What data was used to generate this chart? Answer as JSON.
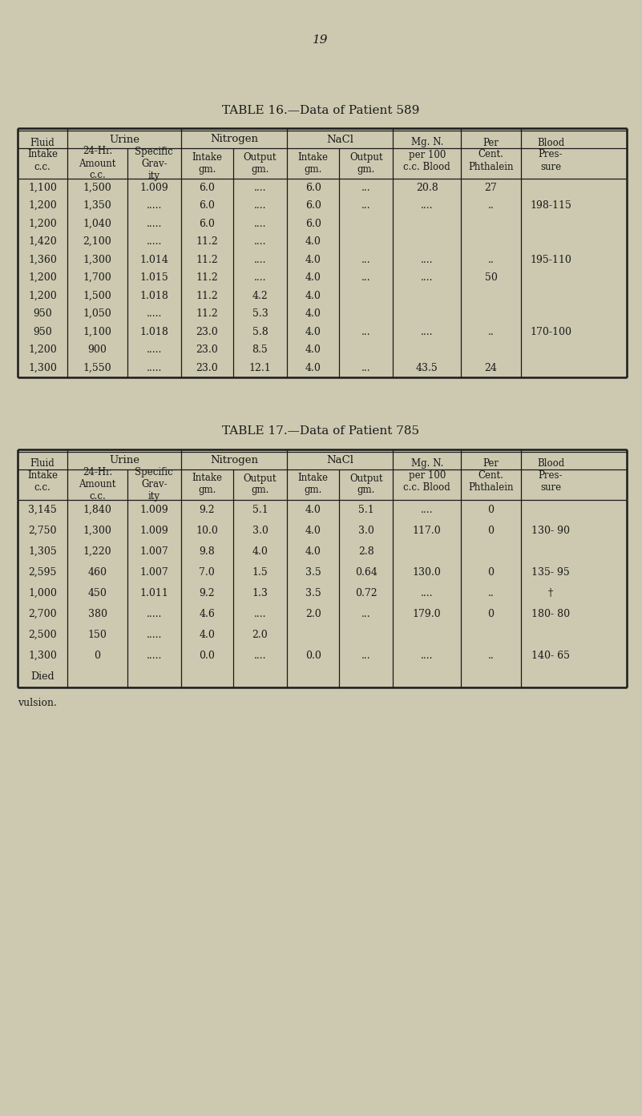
{
  "page_number": "19",
  "bg_color": "#ccc9b0",
  "text_color": "#1a1a1a",
  "table16": {
    "title": "TABLE 16.—Data of Patient 589",
    "rows": [
      [
        "1,100",
        "1,500",
        "1.009",
        "6.0",
        "....",
        "6.0",
        "...",
        "20.8",
        "27",
        ""
      ],
      [
        "1,200",
        "1,350",
        ".....",
        "6.0",
        "....",
        "6.0",
        "...",
        "....",
        "..",
        "198-115"
      ],
      [
        "1,200",
        "1,040",
        ".....",
        "6.0",
        "....",
        "6.0",
        "",
        "",
        "",
        ""
      ],
      [
        "1,420",
        "2,100",
        ".....",
        "11.2",
        "....",
        "4.0",
        "",
        "",
        "",
        ""
      ],
      [
        "1,360",
        "1,300",
        "1.014",
        "11.2",
        "....",
        "4.0",
        "...",
        "....",
        "..",
        "195-110"
      ],
      [
        "1,200",
        "1,700",
        "1.015",
        "11.2",
        "....",
        "4.0",
        "...",
        "....",
        "50",
        ""
      ],
      [
        "1,200",
        "1,500",
        "1.018",
        "11.2",
        "4.2",
        "4.0",
        "",
        "",
        "",
        ""
      ],
      [
        "950",
        "1,050",
        ".....",
        "11.2",
        "5.3",
        "4.0",
        "",
        "",
        "",
        ""
      ],
      [
        "950",
        "1,100",
        "1.018",
        "23.0",
        "5.8",
        "4.0",
        "...",
        "....",
        "..",
        "170-100"
      ],
      [
        "1,200",
        "900",
        ".....",
        "23.0",
        "8.5",
        "4.0",
        "",
        "",
        "",
        ""
      ],
      [
        "1,300",
        "1,550",
        ".....",
        "23.0",
        "12.1",
        "4.0",
        "...",
        "43.5",
        "24",
        ""
      ]
    ]
  },
  "table17": {
    "title": "TABLE 17.—Data of Patient 785",
    "rows": [
      [
        "3,145",
        "1,840",
        "1.009",
        "9.2",
        "5.1",
        "4.0",
        "5.1",
        "....",
        "0",
        ""
      ],
      [
        "2,750",
        "1,300",
        "1.009",
        "10.0",
        "3.0",
        "4.0",
        "3.0",
        "117.0",
        "0",
        "130- 90"
      ],
      [
        "1,305",
        "1,220",
        "1.007",
        "9.8",
        "4.0",
        "4.0",
        "2.8",
        "",
        "",
        ""
      ],
      [
        "2,595",
        "460",
        "1.007",
        "7.0",
        "1.5",
        "3.5",
        "0.64",
        "130.0",
        "0",
        "135- 95"
      ],
      [
        "1,000",
        "450",
        "1.011",
        "9.2",
        "1.3",
        "3.5",
        "0.72",
        "....",
        "..",
        "†"
      ],
      [
        "2,700",
        "380",
        ".....",
        "4.6",
        "....",
        "2.0",
        "...",
        "179.0",
        "0",
        "180- 80"
      ],
      [
        "2,500",
        "150",
        ".....",
        "4.0",
        "2.0",
        "",
        "",
        "",
        "",
        ""
      ],
      [
        "1,300",
        "0",
        ".....",
        "0.0",
        "....",
        "0.0",
        "...",
        "....",
        "..",
        "140- 65"
      ],
      [
        "Died",
        "",
        "",
        "",
        "",
        "",
        "",
        "",
        "",
        ""
      ]
    ],
    "footnote": "vulsion."
  }
}
